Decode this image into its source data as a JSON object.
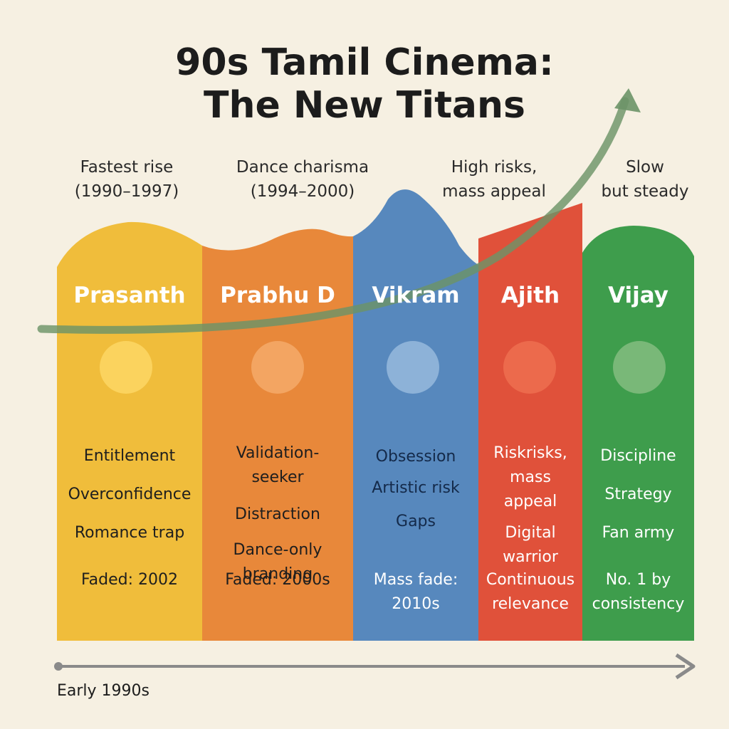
{
  "title_line1": "90s Tamil Cinema:",
  "title_line2": "The New Titans",
  "subtitles": [
    {
      "line1": "Fastest rise",
      "line2": "(1990–1997)"
    },
    {
      "line1": "Dance charisma",
      "line2": "(1994–2000)"
    },
    {
      "line1": "High risks,",
      "line2": "mass appeal"
    },
    {
      "line1": "Slow",
      "line2": "but steady"
    }
  ],
  "columns": [
    {
      "name": "Prasanth",
      "color": "#f0bd3b",
      "circle": "#fbd35e",
      "text_color": "#1e1e1e",
      "traits": [
        "Entitlement",
        "Overconfidence",
        "Romance trap"
      ],
      "outcome": [
        "Faded: 2002"
      ]
    },
    {
      "name": "Prabhu D",
      "color": "#e8883a",
      "circle": "#f3a562",
      "text_color": "#1e1e1e",
      "traits": [
        "Validation-",
        "seeker",
        "Distraction",
        "Dance-only",
        "branding"
      ],
      "outcome": [
        "Faded: 2000s"
      ]
    },
    {
      "name": "Vikram",
      "color": "#5788bd",
      "circle": "#8db2d8",
      "text_color": "#142a4a",
      "traits": [
        "Obsession",
        "Artistic risk",
        "Gaps"
      ],
      "outcome": [
        "Mass fade:",
        "2010s"
      ]
    },
    {
      "name": "Ajith",
      "color": "#e0513a",
      "circle": "#ec6a4c",
      "text_color": "#ffffff",
      "traits": [
        "Riskrisks,",
        "mass",
        "appeal",
        "Digital",
        "warrior"
      ],
      "outcome": [
        "Continuous",
        "relevance"
      ]
    },
    {
      "name": "Vijay",
      "color": "#3e9d4c",
      "circle": "#79b878",
      "text_color": "#ffffff",
      "traits": [
        "Discipline",
        "Strategy",
        "Fan army"
      ],
      "outcome": [
        "No. 1 by",
        "consistency"
      ]
    }
  ],
  "axis_label": "Early 1990s",
  "arrow_color": "#6d9468",
  "axis_color": "#8a8a8a"
}
